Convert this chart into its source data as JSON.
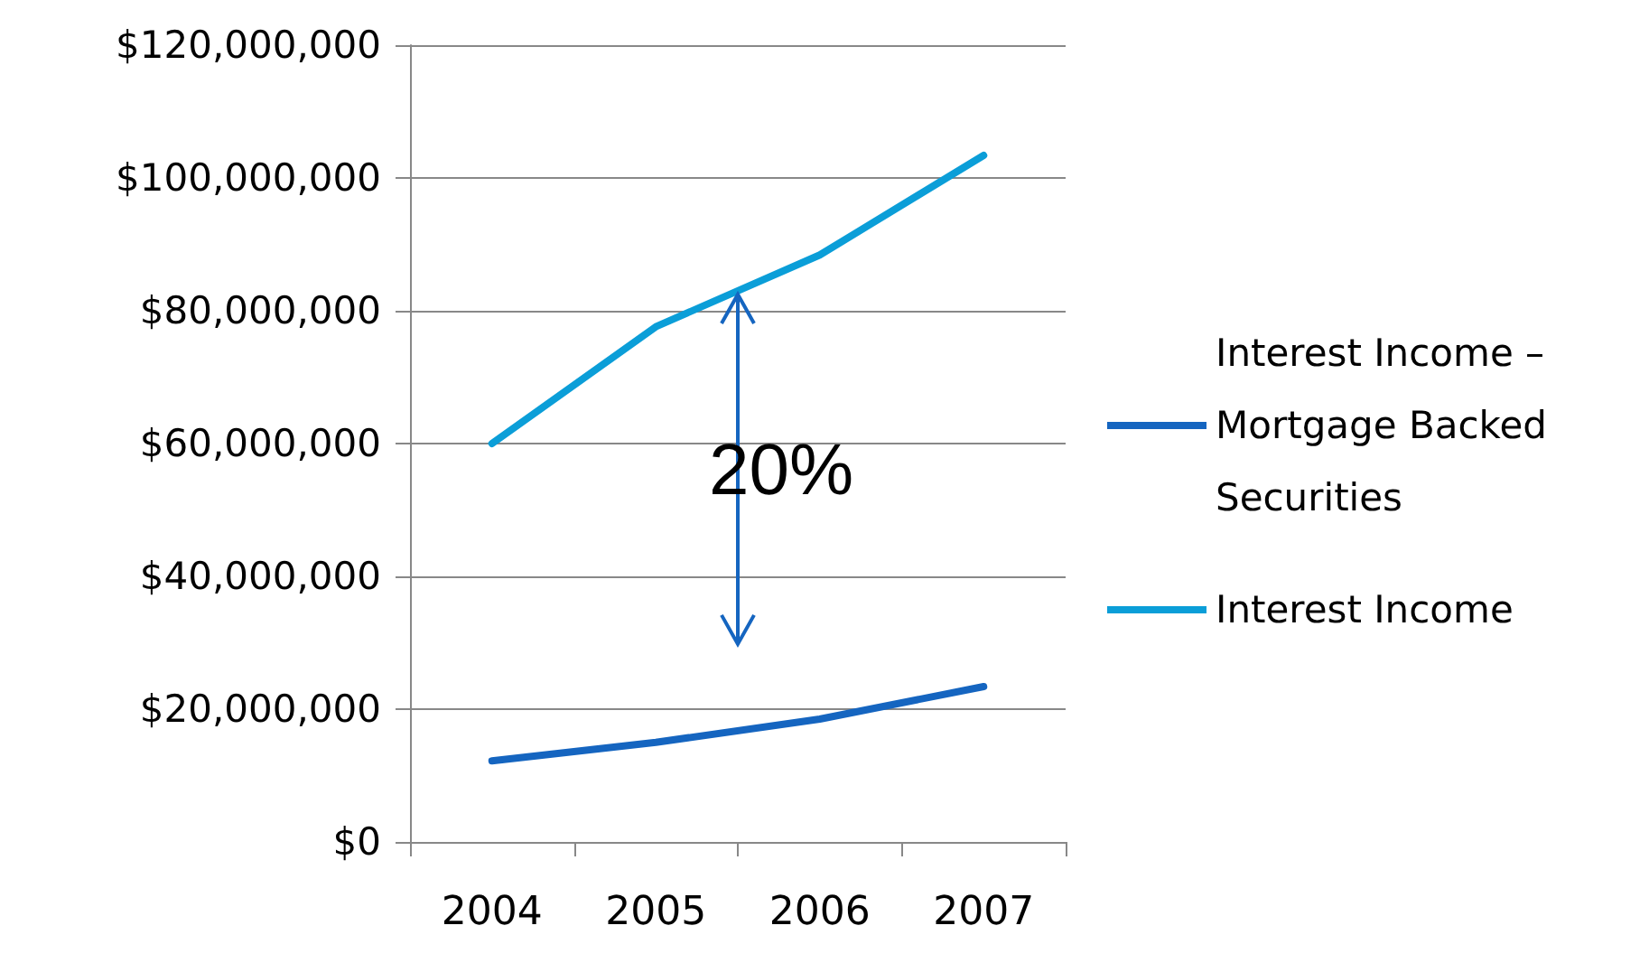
{
  "chart_data": {
    "type": "line",
    "categories": [
      "2004",
      "2005",
      "2006",
      "2007"
    ],
    "series": [
      {
        "name": "Interest Income – Mortgage Backed Securities",
        "color": "#1565c0",
        "values": [
          12200000,
          15000000,
          18500000,
          23400000
        ]
      },
      {
        "name": "Interest Income",
        "color": "#0b9ed8",
        "values": [
          60000000,
          77600000,
          88400000,
          103400000
        ]
      }
    ],
    "ylim": [
      0,
      120000000
    ],
    "yticks": [
      {
        "value": 0,
        "label": "$0"
      },
      {
        "value": 20000000,
        "label": "$20,000,000"
      },
      {
        "value": 40000000,
        "label": "$40,000,000"
      },
      {
        "value": 60000000,
        "label": "$60,000,000"
      },
      {
        "value": 80000000,
        "label": "$80,000,000"
      },
      {
        "value": 100000000,
        "label": "$100,000,000"
      },
      {
        "value": 120000000,
        "label": "$120,000,000"
      }
    ],
    "annotations": [
      "20%"
    ],
    "grid": "y",
    "legend": "right",
    "marker": "none",
    "line_style": "solid"
  }
}
